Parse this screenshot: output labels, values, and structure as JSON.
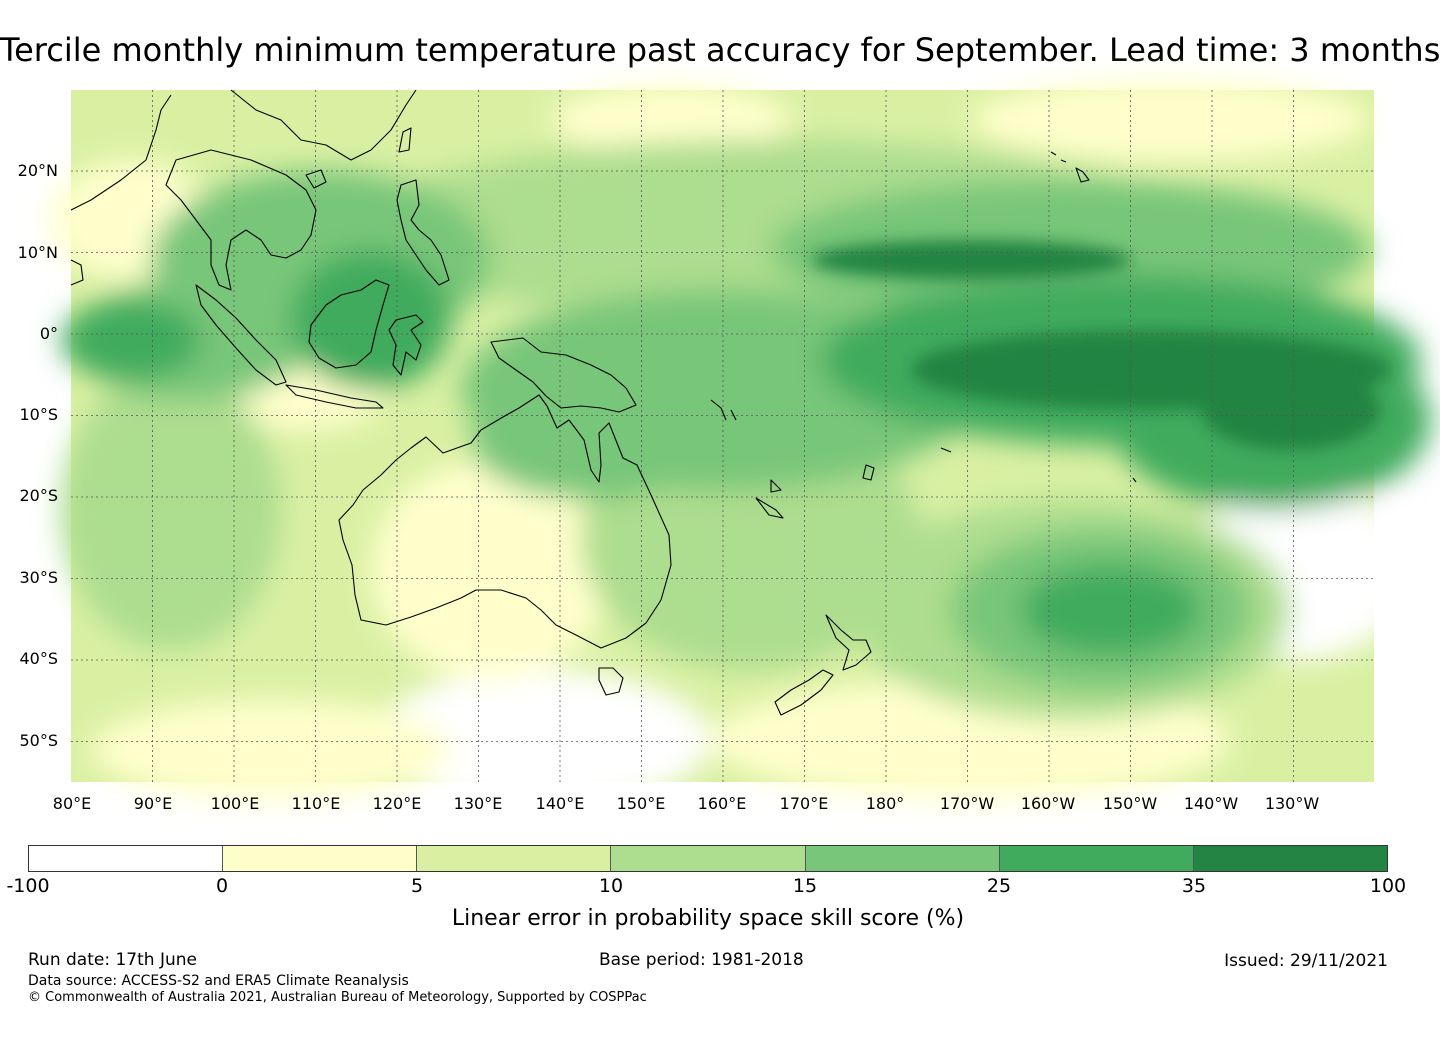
{
  "title": "Tercile monthly minimum temperature past accuracy for September. Lead time: 3 months",
  "map": {
    "latitude_labels": [
      "20°N",
      "10°N",
      "0°",
      "10°S",
      "20°S",
      "30°S",
      "40°S",
      "50°S"
    ],
    "longitude_labels": [
      "80°E",
      "90°E",
      "100°E",
      "110°E",
      "120°E",
      "130°E",
      "140°E",
      "150°E",
      "160°E",
      "170°E",
      "180°",
      "170°W",
      "160°W",
      "150°W",
      "140°W",
      "130°W"
    ],
    "landmass_icons": [
      "australia-landmass-icon",
      "new-zealand-landmass-icon",
      "tasmania-landmass-icon",
      "borneo-landmass-icon",
      "new-guinea-landmass-icon",
      "sumatra-landmass-icon",
      "philippines-landmass-icon"
    ],
    "colors": {
      "coastline": "#000000",
      "gridline": "#555555"
    }
  },
  "colorbar": {
    "ticks": [
      "-100",
      "0",
      "5",
      "10",
      "15",
      "25",
      "35",
      "100"
    ],
    "colors": [
      "#ffffff",
      "#ffffcc",
      "#d9f0a3",
      "#addd8e",
      "#78c679",
      "#41ab5d",
      "#238443"
    ],
    "label": "Linear error in probability space skill score (%)"
  },
  "footer": {
    "run_date": "Run date: 17th June",
    "base_period": "Base period: 1981-2018",
    "issued": "Issued: 29/11/2021",
    "data_source": "Data source: ACCESS-S2 and ERA5 Climate Reanalysis",
    "copyright": "© Commonwealth of Australia 2021, Australian Bureau of Meteorology, Supported by COSPPac"
  }
}
